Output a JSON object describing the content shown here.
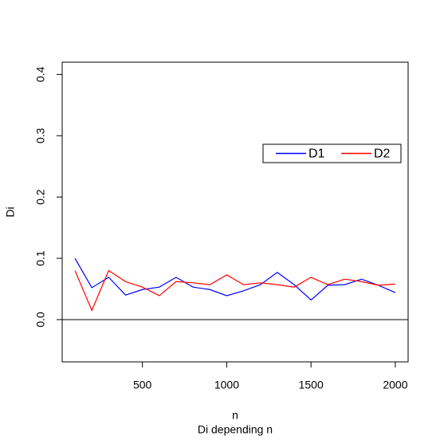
{
  "chart_data": {
    "type": "line",
    "x_label": "n",
    "y_label": "Di",
    "subtitle": "Di depending n",
    "x": [
      100,
      200,
      300,
      400,
      500,
      600,
      700,
      800,
      900,
      1000,
      1100,
      1200,
      1300,
      1400,
      1500,
      1600,
      1700,
      1800,
      1900,
      2000
    ],
    "series": [
      {
        "name": "D1",
        "color": "#0000ff",
        "values": [
          0.1,
          0.052,
          0.069,
          0.04,
          0.049,
          0.053,
          0.069,
          0.053,
          0.049,
          0.039,
          0.047,
          0.057,
          0.077,
          0.057,
          0.032,
          0.056,
          0.057,
          0.066,
          0.056,
          0.044
        ]
      },
      {
        "name": "D2",
        "color": "#ff0000",
        "values": [
          0.08,
          0.015,
          0.08,
          0.062,
          0.053,
          0.039,
          0.062,
          0.06,
          0.057,
          0.073,
          0.057,
          0.06,
          0.057,
          0.053,
          0.069,
          0.057,
          0.066,
          0.062,
          0.056,
          0.058
        ]
      }
    ],
    "xlim": [
      24,
      2076
    ],
    "xticks": [
      500,
      1000,
      1500,
      2000
    ],
    "ylim": [
      -0.069,
      0.42
    ],
    "yticks": [
      {
        "value": 0,
        "label": "0.0"
      },
      0.1,
      0.2,
      0.3,
      0.4
    ],
    "hline": 0,
    "legend": "right"
  }
}
